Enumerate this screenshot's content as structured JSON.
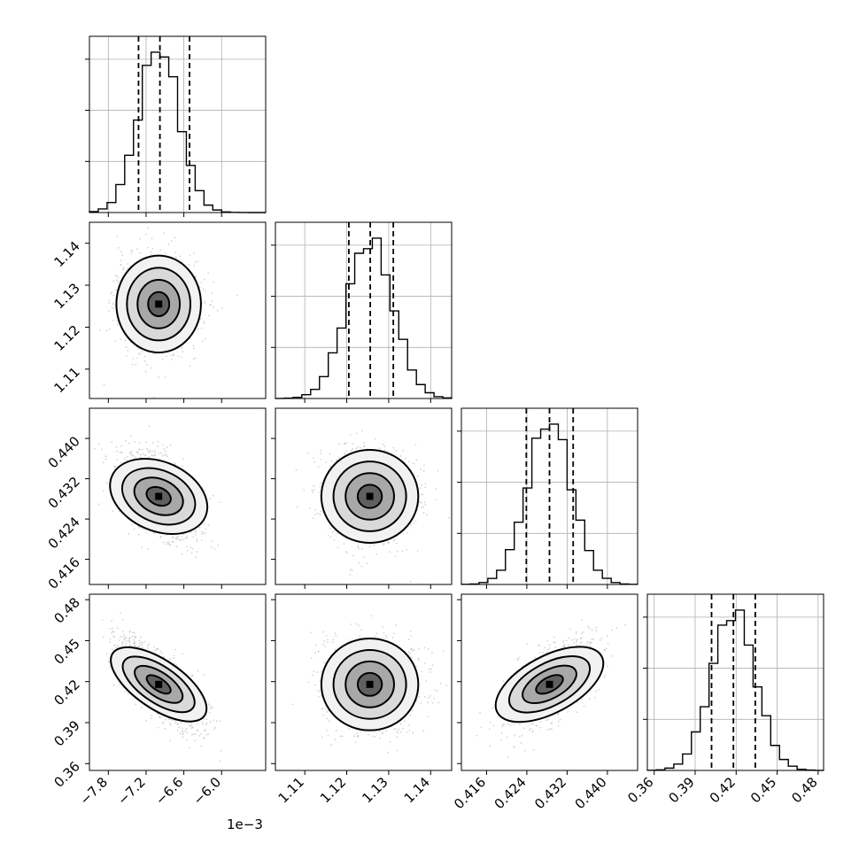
{
  "chart_data": {
    "type": "corner",
    "parameters": 4,
    "x_offset_label": "1e−3",
    "quantile_style": "dashed",
    "grid": true,
    "axes": [
      {
        "range": [
          -8.1,
          -5.3
        ],
        "ticks": [
          -7.8,
          -7.2,
          -6.6,
          -6.0
        ],
        "tick_labels": [
          "−7.8",
          "−7.2",
          "−6.6",
          "−6.0"
        ],
        "mean": -7.0,
        "sd": 0.32,
        "quantiles": [
          -7.32,
          -6.98,
          -6.51
        ]
      },
      {
        "range": [
          1.103,
          1.145
        ],
        "ticks": [
          1.11,
          1.12,
          1.13,
          1.14
        ],
        "tick_labels": [
          "1.11",
          "1.12",
          "1.13",
          "1.14"
        ],
        "mean": 1.1255,
        "sd": 0.0055,
        "quantiles": [
          1.1205,
          1.1256,
          1.1311
        ]
      },
      {
        "range": [
          0.411,
          0.446
        ],
        "ticks": [
          0.416,
          0.424,
          0.432,
          0.44
        ],
        "tick_labels": [
          "0.416",
          "0.424",
          "0.432",
          "0.440"
        ],
        "mean": 0.4285,
        "sd": 0.0044,
        "quantiles": [
          0.4239,
          0.4285,
          0.4332
        ]
      },
      {
        "range": [
          0.355,
          0.484
        ],
        "ticks": [
          0.36,
          0.39,
          0.42,
          0.45,
          0.48
        ],
        "tick_labels": [
          "0.36",
          "0.39",
          "0.42",
          "0.45",
          "0.48"
        ],
        "mean": 0.418,
        "sd": 0.016,
        "quantiles": [
          0.402,
          0.418,
          0.434
        ]
      }
    ],
    "correlations": [
      {
        "pair": [
          0,
          1
        ],
        "rho": 0.0
      },
      {
        "pair": [
          0,
          2
        ],
        "rho": -0.45
      },
      {
        "pair": [
          1,
          2
        ],
        "rho": 0.0
      },
      {
        "pair": [
          0,
          3
        ],
        "rho": -0.72
      },
      {
        "pair": [
          1,
          3
        ],
        "rho": 0.0
      },
      {
        "pair": [
          2,
          3
        ],
        "rho": 0.62
      }
    ]
  }
}
